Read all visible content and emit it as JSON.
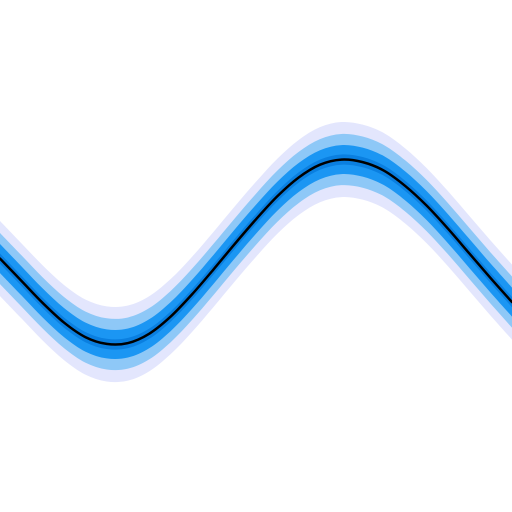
{
  "chart_data": {
    "type": "area",
    "title": "",
    "xlabel": "",
    "ylabel": "",
    "xlim": [
      0,
      6.0
    ],
    "ylim": [
      -3.0,
      3.0
    ],
    "grid": false,
    "legend": "none",
    "x": [
      0.0,
      0.25,
      0.5,
      0.75,
      1.0,
      1.25,
      1.5,
      1.75,
      2.0,
      2.25,
      2.5,
      2.75,
      3.0,
      3.25,
      3.5,
      3.75,
      4.0,
      4.25,
      4.5,
      4.75,
      5.0,
      5.25,
      5.5,
      5.75,
      6.0
    ],
    "series": [
      {
        "role": "mean",
        "values": [
          -0.03,
          -0.29,
          -0.55,
          -0.78,
          -0.95,
          -1.03,
          -1.02,
          -0.91,
          -0.71,
          -0.45,
          -0.16,
          0.14,
          0.43,
          0.7,
          0.92,
          1.07,
          1.13,
          1.1,
          1.0,
          0.82,
          0.59,
          0.32,
          0.03,
          -0.26,
          -0.54
        ],
        "color": "#000000"
      },
      {
        "role": "band",
        "halfwidth": 0.06,
        "color": "#0a7fe0"
      },
      {
        "role": "band",
        "halfwidth": 0.17,
        "color": "#1b96f3"
      },
      {
        "role": "band",
        "halfwidth": 0.3,
        "color": "#8ec8f7"
      },
      {
        "role": "band",
        "halfwidth": 0.44,
        "color": "#e3e6fd"
      }
    ]
  }
}
